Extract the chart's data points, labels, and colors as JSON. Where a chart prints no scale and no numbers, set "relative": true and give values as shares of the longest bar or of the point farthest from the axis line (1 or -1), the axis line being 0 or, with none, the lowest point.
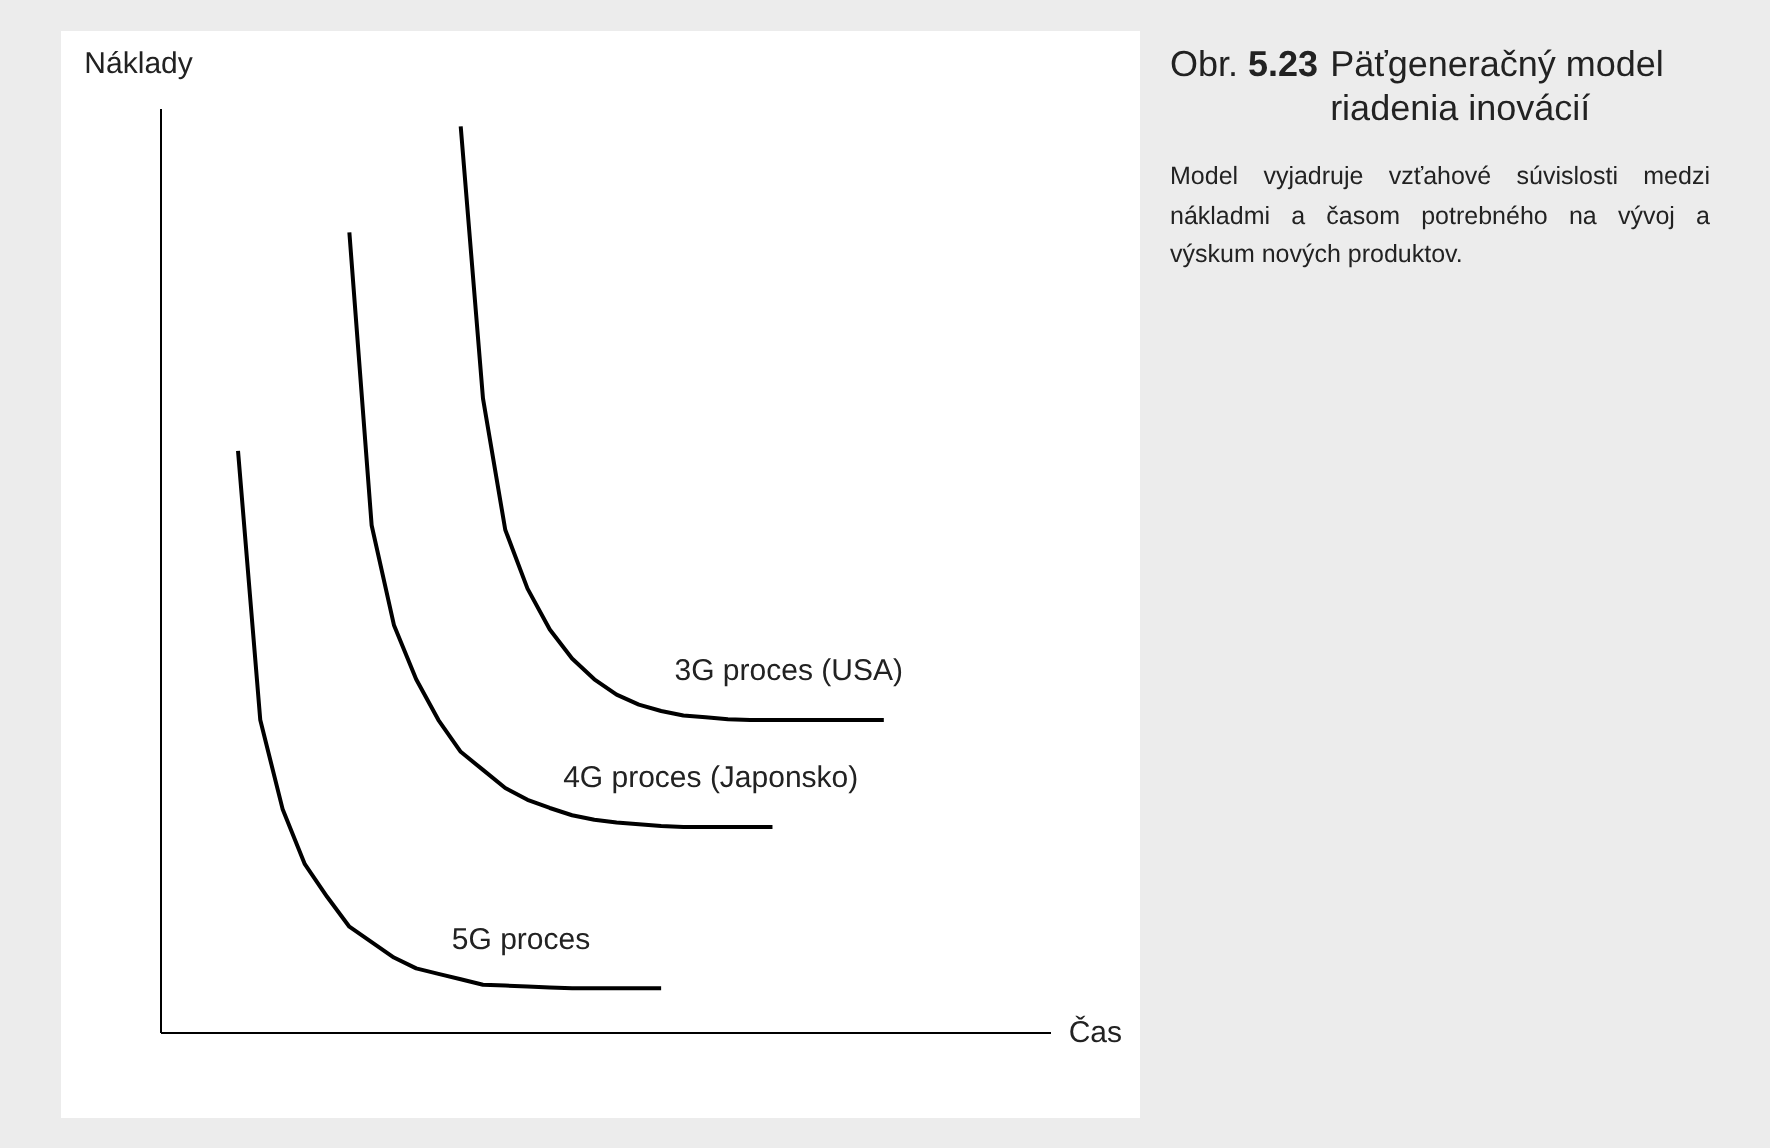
{
  "chart_data": {
    "type": "line",
    "relative": true,
    "title": "Obr. 5.23 Päťgeneračný model riadenia inovácií",
    "xlabel": "Čas",
    "ylabel": "Náklady",
    "tick_labels": false,
    "legend": false,
    "grid": false,
    "line_style": "solid",
    "annotations": [
      "Model vyjadruje vzťahové súvislosti medzi nákladmi a časom potrebného na vývoj a výskum nových produktov."
    ],
    "categories": [
      null,
      null,
      null,
      null,
      null,
      null,
      null,
      null,
      null,
      null,
      null,
      null,
      null,
      null,
      null,
      null,
      null,
      null,
      null,
      null,
      null,
      null,
      null,
      null,
      null,
      null,
      null,
      null,
      null,
      null,
      null,
      null,
      null,
      null,
      null,
      null,
      null,
      null,
      null,
      null
    ],
    "series": [
      {
        "name": "3G proces (USA)",
        "color": "#000000",
        "values": [
          null,
          null,
          null,
          null,
          null,
          null,
          null,
          null,
          null,
          null,
          null,
          null,
          null,
          1.0,
          0.7,
          0.555,
          0.49,
          0.445,
          0.413,
          0.39,
          0.373,
          0.362,
          0.355,
          0.35,
          0.348,
          0.346,
          0.345,
          0.345,
          0.345,
          0.345,
          0.345,
          0.345,
          0.345,
          null,
          null,
          null,
          null,
          null,
          null,
          null
        ]
      },
      {
        "name": "4G proces (Japonsko)",
        "color": "#000000",
        "values": [
          null,
          null,
          null,
          null,
          null,
          null,
          null,
          null,
          0.883,
          0.56,
          0.45,
          0.39,
          0.345,
          0.31,
          0.29,
          0.27,
          0.257,
          0.248,
          0.24,
          0.235,
          0.232,
          0.23,
          0.228,
          0.227,
          0.227,
          0.227,
          0.227,
          0.227,
          null,
          null,
          null,
          null,
          null,
          null,
          null,
          null,
          null,
          null,
          null,
          null
        ]
      },
      {
        "name": "5G proces",
        "color": "#000000",
        "values": [
          null,
          null,
          null,
          0.642,
          0.345,
          0.247,
          0.186,
          0.15,
          0.117,
          0.1,
          0.083,
          0.071,
          0.065,
          0.059,
          0.053,
          0.052,
          0.051,
          0.05,
          0.049,
          0.049,
          0.049,
          0.049,
          0.049,
          null,
          null,
          null,
          null,
          null,
          null,
          null,
          null,
          null,
          null,
          null,
          null,
          null,
          null,
          null,
          null,
          null
        ]
      }
    ]
  }
}
